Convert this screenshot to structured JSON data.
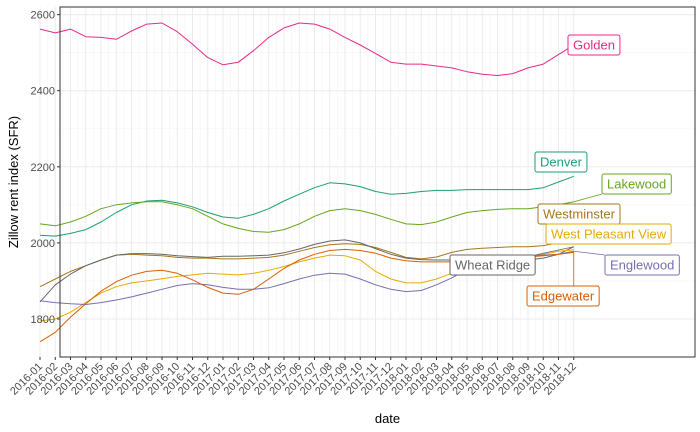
{
  "chart_data": {
    "type": "line",
    "title": "",
    "xlabel": "date",
    "ylabel": "Zillow rent index (SFR)",
    "ylim": [
      1700,
      2620
    ],
    "y_ticks": [
      1800,
      2000,
      2200,
      2400,
      2600
    ],
    "grid": true,
    "legend": "direct labels at line ends",
    "categories": [
      "2016-01",
      "2016-02",
      "2016-03",
      "2016-04",
      "2016-05",
      "2016-06",
      "2016-07",
      "2016-08",
      "2016-09",
      "2016-10",
      "2016-11",
      "2016-12",
      "2017-01",
      "2017-02",
      "2017-03",
      "2017-04",
      "2017-05",
      "2017-06",
      "2017-07",
      "2017-08",
      "2017-09",
      "2017-10",
      "2017-11",
      "2017-12",
      "2018-01",
      "2018-02",
      "2018-03",
      "2018-04",
      "2018-05",
      "2018-06",
      "2018-07",
      "2018-08",
      "2018-09",
      "2018-10",
      "2018-11",
      "2018-12"
    ],
    "series": [
      {
        "name": "Golden",
        "color": "#E7298A",
        "values": [
          2562,
          2552,
          2562,
          2542,
          2540,
          2535,
          2557,
          2575,
          2578,
          2555,
          2522,
          2487,
          2468,
          2475,
          2505,
          2540,
          2565,
          2578,
          2575,
          2562,
          2540,
          2520,
          2498,
          2475,
          2470,
          2470,
          2465,
          2460,
          2450,
          2443,
          2440,
          2445,
          2460,
          2470,
          2495,
          2520
        ]
      },
      {
        "name": "Denver",
        "color": "#1B9E77",
        "values": [
          2020,
          2018,
          2025,
          2035,
          2055,
          2080,
          2100,
          2110,
          2112,
          2105,
          2095,
          2080,
          2068,
          2065,
          2075,
          2090,
          2110,
          2128,
          2145,
          2158,
          2155,
          2148,
          2135,
          2128,
          2130,
          2135,
          2138,
          2138,
          2140,
          2140,
          2140,
          2140,
          2140,
          2145,
          2160,
          2175
        ]
      },
      {
        "name": "Lakewood",
        "color": "#66A61E",
        "values": [
          2050,
          2045,
          2055,
          2070,
          2090,
          2100,
          2105,
          2108,
          2108,
          2100,
          2090,
          2070,
          2050,
          2038,
          2030,
          2028,
          2035,
          2050,
          2070,
          2085,
          2090,
          2085,
          2075,
          2062,
          2050,
          2048,
          2055,
          2068,
          2080,
          2085,
          2088,
          2090,
          2090,
          2095,
          2100,
          2108
        ]
      },
      {
        "name": "Westminster",
        "color": "#A6761D",
        "values": [
          1885,
          1905,
          1925,
          1940,
          1955,
          1968,
          1970,
          1968,
          1966,
          1962,
          1960,
          1960,
          1958,
          1958,
          1960,
          1962,
          1968,
          1978,
          1988,
          1995,
          1998,
          1996,
          1988,
          1975,
          1962,
          1958,
          1963,
          1975,
          1983,
          1986,
          1988,
          1990,
          1990,
          1993,
          2000,
          2008
        ]
      },
      {
        "name": "Wheat Ridge",
        "color": "#666666",
        "values": [
          1845,
          1890,
          1918,
          1940,
          1955,
          1968,
          1972,
          1972,
          1970,
          1966,
          1964,
          1962,
          1965,
          1965,
          1966,
          1968,
          1974,
          1984,
          1996,
          2005,
          2008,
          2000,
          1985,
          1970,
          1960,
          1956,
          1955,
          1955,
          1955,
          1955,
          1955,
          1955,
          1955,
          1960,
          1970,
          1990
        ]
      },
      {
        "name": "West Pleasant View",
        "color": "#E6AB02",
        "values": [
          1795,
          1800,
          1818,
          1843,
          1868,
          1885,
          1895,
          1900,
          1906,
          1912,
          1916,
          1920,
          1918,
          1916,
          1920,
          1928,
          1938,
          1950,
          1960,
          1968,
          1966,
          1955,
          1925,
          1905,
          1895,
          1895,
          1905,
          1920,
          1935,
          1945,
          1953,
          1960,
          1965,
          1970,
          1978,
          1982
        ]
      },
      {
        "name": "Englewood",
        "color": "#7570B3",
        "values": [
          1848,
          1843,
          1840,
          1838,
          1843,
          1850,
          1858,
          1868,
          1878,
          1888,
          1893,
          1890,
          1883,
          1878,
          1878,
          1882,
          1893,
          1905,
          1915,
          1920,
          1918,
          1905,
          1890,
          1878,
          1872,
          1875,
          1890,
          1908,
          1930,
          1948,
          1958,
          1963,
          1966,
          1968,
          1970,
          1978
        ]
      },
      {
        "name": "Edgewater",
        "color": "#D95F02",
        "values": [
          1740,
          1765,
          1805,
          1840,
          1873,
          1898,
          1915,
          1925,
          1928,
          1920,
          1903,
          1883,
          1868,
          1865,
          1878,
          1905,
          1933,
          1955,
          1970,
          1980,
          1983,
          1980,
          1973,
          1960,
          1953,
          1950,
          1950,
          1950,
          1952,
          1955,
          1958,
          1960,
          1963,
          1966,
          1970,
          1975
        ]
      }
    ],
    "labels": [
      {
        "series": "Golden",
        "text": "Golden"
      },
      {
        "series": "Denver",
        "text": "Denver"
      },
      {
        "series": "Lakewood",
        "text": "Lakewood"
      },
      {
        "series": "Westminster",
        "text": "Westminster"
      },
      {
        "series": "West Pleasant View",
        "text": "West Pleasant View"
      },
      {
        "series": "Wheat Ridge",
        "text": "Wheat Ridge"
      },
      {
        "series": "Englewood",
        "text": "Englewood"
      },
      {
        "series": "Edgewater",
        "text": "Edgewater"
      }
    ]
  }
}
